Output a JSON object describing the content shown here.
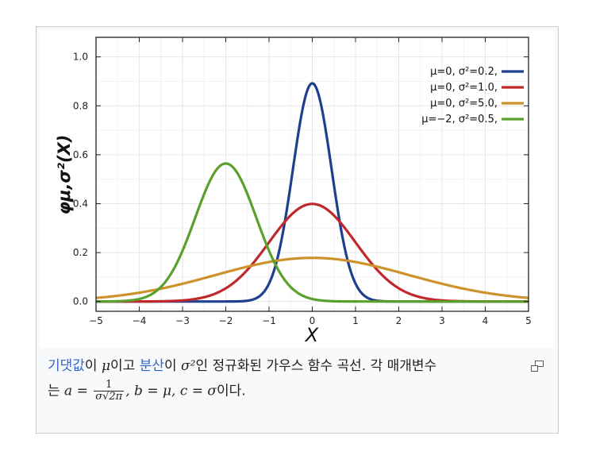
{
  "chart_data": {
    "type": "line",
    "xlabel": "X",
    "ylabel": "φμ,σ²(X)",
    "xlim": [
      -5,
      5
    ],
    "ylim": [
      -0.04,
      1.08
    ],
    "x_ticks": [
      "−5",
      "−4",
      "−3",
      "−2",
      "−1",
      "0",
      "1",
      "2",
      "3",
      "4",
      "5"
    ],
    "y_ticks": [
      "0.0",
      "0.2",
      "0.4",
      "0.6",
      "0.8",
      "1.0"
    ],
    "grid": true,
    "legend_position": "top-right",
    "series": [
      {
        "name": "μ=0,    σ²=0.2,",
        "mu": 0,
        "sigma2": 0.2,
        "color": "#1f3f8f",
        "peak": 0.892
      },
      {
        "name": "μ=0,    σ²=1.0,",
        "mu": 0,
        "sigma2": 1.0,
        "color": "#c0292b",
        "peak": 0.399
      },
      {
        "name": "μ=0,    σ²=5.0,",
        "mu": 0,
        "sigma2": 5.0,
        "color": "#cc922b",
        "peak": 0.178
      },
      {
        "name": "μ=−2,  σ²=0.5,",
        "mu": -2,
        "sigma2": 0.5,
        "color": "#5aa02c",
        "peak": 0.564
      }
    ]
  },
  "caption": {
    "link_mean": "기댓값",
    "text_1": "이 ",
    "mu": "μ",
    "text_2": "이고 ",
    "link_variance": "분산",
    "text_3": "이 ",
    "sigma2": "σ²",
    "text_4": "인 정규화된 가우스 함수 곡선. 각 매개변수",
    "text_5": "는 ",
    "a_eq": "a = ",
    "frac_num": "1",
    "frac_den": "σ√2π",
    "text_6": ", b = μ, c = σ",
    "text_7": "이다."
  },
  "icons": {
    "enlarge": "enlarge-icon"
  }
}
